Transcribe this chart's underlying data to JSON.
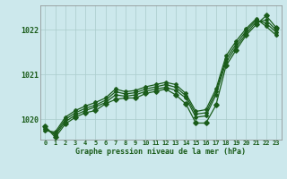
{
  "title": "Graphe pression niveau de la mer (hPa)",
  "background_color": "#cce8ec",
  "grid_color": "#aacccc",
  "line_color": "#1a5c1a",
  "x_labels": [
    "0",
    "1",
    "2",
    "3",
    "4",
    "5",
    "6",
    "7",
    "8",
    "9",
    "10",
    "11",
    "12",
    "13",
    "14",
    "15",
    "16",
    "17",
    "18",
    "19",
    "20",
    "21",
    "22",
    "23"
  ],
  "ylim": [
    1019.55,
    1022.55
  ],
  "yticks": [
    1020,
    1021,
    1022
  ],
  "series_main": [
    1019.85,
    1019.6,
    1019.9,
    1020.05,
    1020.15,
    1020.2,
    1020.35,
    1020.45,
    1020.48,
    1020.48,
    1020.58,
    1020.63,
    1020.68,
    1020.55,
    1020.35,
    1019.92,
    1019.92,
    1020.32,
    1021.2,
    1021.55,
    1021.88,
    1022.12,
    1022.32,
    1022.05
  ],
  "series_line1": [
    1019.82,
    1019.65,
    1019.95,
    1020.1,
    1020.2,
    1020.28,
    1020.38,
    1020.55,
    1020.52,
    1020.55,
    1020.63,
    1020.68,
    1020.72,
    1020.65,
    1020.48,
    1020.05,
    1020.08,
    1020.55,
    1021.28,
    1021.62,
    1021.92,
    1022.18,
    1022.22,
    1022.0
  ],
  "series_line2": [
    1019.78,
    1019.68,
    1020.0,
    1020.15,
    1020.25,
    1020.32,
    1020.43,
    1020.62,
    1020.57,
    1020.6,
    1020.68,
    1020.73,
    1020.78,
    1020.72,
    1020.53,
    1020.12,
    1020.15,
    1020.62,
    1021.35,
    1021.68,
    1021.98,
    1022.22,
    1022.15,
    1021.95
  ],
  "series_line3": [
    1019.75,
    1019.72,
    1020.05,
    1020.2,
    1020.3,
    1020.38,
    1020.48,
    1020.68,
    1020.62,
    1020.65,
    1020.73,
    1020.78,
    1020.83,
    1020.78,
    1020.58,
    1020.18,
    1020.22,
    1020.68,
    1021.42,
    1021.75,
    1022.03,
    1022.25,
    1022.08,
    1021.88
  ]
}
